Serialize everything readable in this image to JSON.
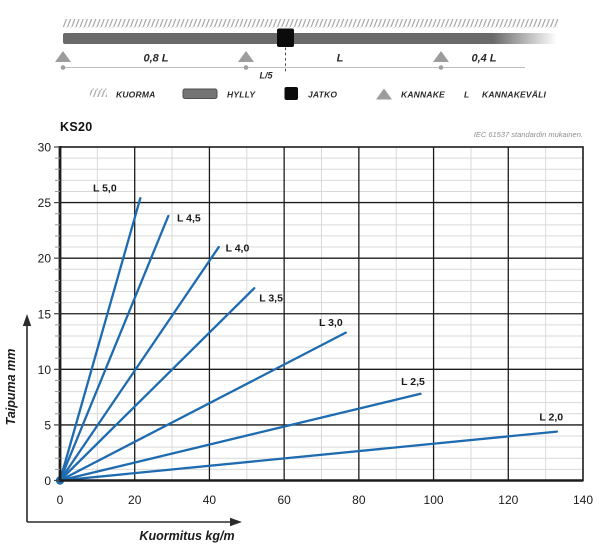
{
  "diagram": {
    "dim_labels": {
      "left_span": "0,8 L",
      "joint_offset": "L/5",
      "mid_span": "L",
      "right_span": "0,4 L"
    },
    "legend": {
      "kuorma": "KUORMA",
      "hylly": "HYLLY",
      "jatko": "JATKO",
      "kannake": "KANNAKE",
      "length_symbol": "L",
      "kannakevali": "KANNAKEVÄLI"
    }
  },
  "chart": {
    "title": "KS20",
    "note": "IEC 61537 standardin mukainen."
  },
  "chart_data": {
    "type": "line",
    "title": "KS20",
    "xlabel": "Kuormitus kg/m",
    "ylabel": "Taipuma mm",
    "xlim": [
      0,
      140
    ],
    "ylim": [
      0,
      30
    ],
    "x_ticks": [
      0,
      20,
      40,
      60,
      80,
      100,
      120,
      140
    ],
    "y_ticks": [
      0,
      5,
      10,
      15,
      20,
      25,
      30
    ],
    "x_minor_step": 10,
    "y_minor_step": 1,
    "grid": true,
    "legend_position": "inline-labels",
    "line_color": "#1f6bb0",
    "origin_marker": true,
    "series": [
      {
        "name": "L 5,0",
        "points": [
          [
            0,
            0
          ],
          [
            21.5,
            25.4
          ]
        ],
        "label_at": [
          12.0,
          26.3
        ]
      },
      {
        "name": "L 4,5",
        "points": [
          [
            0,
            0
          ],
          [
            29.0,
            23.8
          ]
        ],
        "label_at": [
          34.5,
          23.6
        ]
      },
      {
        "name": "L 4,0",
        "points": [
          [
            0,
            0
          ],
          [
            42.5,
            21.0
          ]
        ],
        "label_at": [
          47.5,
          20.9
        ]
      },
      {
        "name": "L 3,5",
        "points": [
          [
            0,
            0
          ],
          [
            52.0,
            17.3
          ]
        ],
        "label_at": [
          56.5,
          16.4
        ]
      },
      {
        "name": "L 3,0",
        "points": [
          [
            0,
            0
          ],
          [
            76.5,
            13.3
          ]
        ],
        "label_at": [
          72.5,
          14.2
        ]
      },
      {
        "name": "L 2,5",
        "points": [
          [
            0,
            0
          ],
          [
            96.5,
            7.8
          ]
        ],
        "label_at": [
          94.5,
          8.9
        ]
      },
      {
        "name": "L 2,0",
        "points": [
          [
            0,
            0
          ],
          [
            133.0,
            4.4
          ]
        ],
        "label_at": [
          131.5,
          5.7
        ]
      }
    ]
  },
  "colors": {
    "line_blue": "#1f6bb0",
    "grid_light": "#d9d9d9",
    "grid_heavy": "#1c1c1c",
    "axis_black": "#1c1c1c",
    "minor_tick": "#999999",
    "text_dark": "#1a1a1a",
    "note_gray": "#8e8e8e",
    "shelf_gray": "#6a6a6a",
    "support_gray": "#9c9c9c",
    "hatch_gray": "#a0a0a0",
    "joint_black": "#0b0b0b",
    "dim_line_gray": "#bdbdbd"
  }
}
